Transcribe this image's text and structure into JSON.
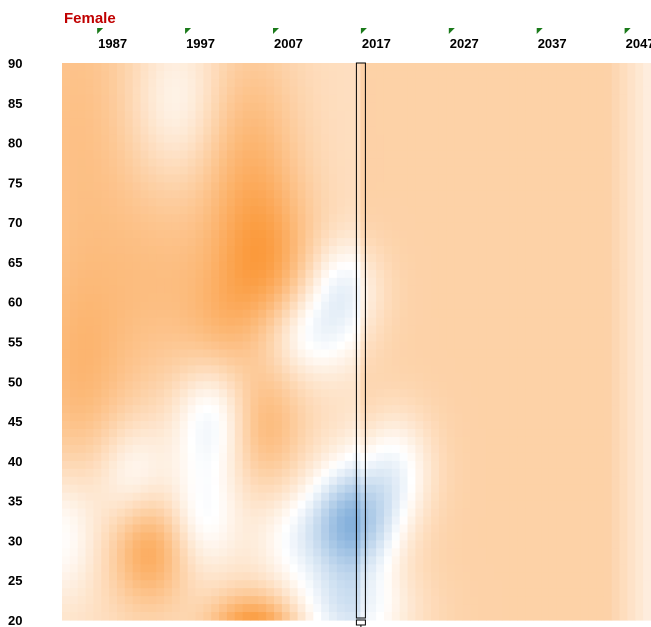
{
  "chart_data": {
    "type": "heatmap",
    "title": "Female",
    "title_color": "#c00000",
    "x_tick_labels": [
      "1987",
      "1997",
      "2007",
      "2017",
      "2027",
      "2037",
      "2047"
    ],
    "y_tick_labels": [
      "90",
      "85",
      "80",
      "75",
      "70",
      "65",
      "60",
      "55",
      "50",
      "45",
      "40",
      "35",
      "30",
      "25",
      "20"
    ],
    "xlim": [
      1983,
      2050
    ],
    "ylim": [
      20,
      90
    ],
    "highlight_year": 2017,
    "grid": false,
    "legend": "none",
    "colors": {
      "negative": "#5b96d0",
      "neutral": "#ffffff",
      "positive": "#fb9a3c",
      "marker": "#1a7a1a",
      "highlight_outline": "#000000"
    },
    "value_range": [
      -1,
      1
    ],
    "features": [
      {
        "x": 1985,
        "y": 82,
        "value": 0.3,
        "sx": 6,
        "sy": 20
      },
      {
        "x": 1996,
        "y": 85,
        "value": -0.3,
        "sx": 4,
        "sy": 7
      },
      {
        "x": 2004,
        "y": 80,
        "value": 0.35,
        "sx": 4,
        "sy": 10
      },
      {
        "x": 2006,
        "y": 64,
        "value": 0.55,
        "sx": 4,
        "sy": 8
      },
      {
        "x": 1995,
        "y": 62,
        "value": 0.25,
        "sx": 5,
        "sy": 10
      },
      {
        "x": 2011,
        "y": 56,
        "value": -0.45,
        "sx": 4,
        "sy": 4
      },
      {
        "x": 2015,
        "y": 62,
        "value": -0.4,
        "sx": 3,
        "sy": 4
      },
      {
        "x": 2000,
        "y": 45,
        "value": -0.45,
        "sx": 3,
        "sy": 5
      },
      {
        "x": 1985,
        "y": 50,
        "value": 0.3,
        "sx": 4,
        "sy": 10
      },
      {
        "x": 2006,
        "y": 44,
        "value": 0.35,
        "sx": 3,
        "sy": 5
      },
      {
        "x": 1991,
        "y": 38,
        "value": -0.35,
        "sx": 3,
        "sy": 5
      },
      {
        "x": 1983,
        "y": 31,
        "value": -0.35,
        "sx": 3,
        "sy": 6
      },
      {
        "x": 1993,
        "y": 29,
        "value": 0.55,
        "sx": 3,
        "sy": 5
      },
      {
        "x": 1999,
        "y": 33,
        "value": -0.35,
        "sx": 3,
        "sy": 5
      },
      {
        "x": 2016,
        "y": 32,
        "value": -1.0,
        "sx": 3.5,
        "sy": 5
      },
      {
        "x": 2021,
        "y": 39,
        "value": -0.45,
        "sx": 3,
        "sy": 5
      },
      {
        "x": 2016,
        "y": 21,
        "value": -0.5,
        "sx": 5,
        "sy": 4
      },
      {
        "x": 2005,
        "y": 19,
        "value": 0.75,
        "sx": 3.5,
        "sy": 3
      },
      {
        "x": 2009,
        "y": 30,
        "value": -0.25,
        "sx": 3,
        "sy": 4
      },
      {
        "x": 2001,
        "y": 57,
        "value": 0.15,
        "sx": 3,
        "sy": 5
      }
    ]
  }
}
